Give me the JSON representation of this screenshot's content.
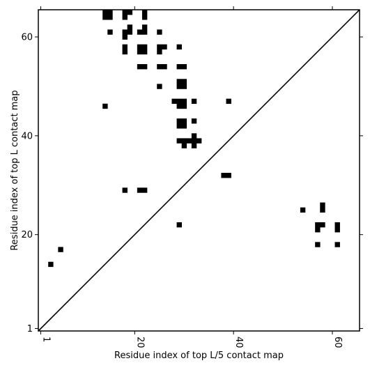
{
  "chart_data": {
    "type": "heatmap",
    "title": "",
    "xlabel": "Residue index of top L/5 contact map",
    "ylabel": "Residue index of top L contact map",
    "xlim": [
      0.5,
      65.5
    ],
    "ylim": [
      0.5,
      65.5
    ],
    "xticks": [
      1,
      20,
      40,
      60
    ],
    "yticks": [
      1,
      20,
      40,
      60
    ],
    "diagonal_line": true,
    "upper_left_contacts": [
      [
        14,
        65
      ],
      [
        15,
        65
      ],
      [
        14,
        64
      ],
      [
        15,
        64
      ],
      [
        18,
        65
      ],
      [
        19,
        65
      ],
      [
        18,
        64
      ],
      [
        22,
        65
      ],
      [
        22,
        64
      ],
      [
        19,
        62
      ],
      [
        22,
        62
      ],
      [
        15,
        61
      ],
      [
        18,
        61
      ],
      [
        19,
        61
      ],
      [
        21,
        61
      ],
      [
        22,
        61
      ],
      [
        25,
        61
      ],
      [
        18,
        60
      ],
      [
        18,
        58
      ],
      [
        21,
        58
      ],
      [
        22,
        58
      ],
      [
        25,
        58
      ],
      [
        26,
        58
      ],
      [
        29,
        58
      ],
      [
        18,
        57
      ],
      [
        21,
        57
      ],
      [
        22,
        57
      ],
      [
        25,
        57
      ],
      [
        21,
        54
      ],
      [
        22,
        54
      ],
      [
        25,
        54
      ],
      [
        26,
        54
      ],
      [
        29,
        54
      ],
      [
        30,
        54
      ],
      [
        29,
        51
      ],
      [
        30,
        51
      ],
      [
        25,
        50
      ],
      [
        29,
        50
      ],
      [
        30,
        50
      ],
      [
        28,
        47
      ],
      [
        29,
        47
      ],
      [
        30,
        47
      ],
      [
        32,
        47
      ],
      [
        39,
        47
      ],
      [
        29,
        46
      ],
      [
        30,
        46
      ],
      [
        14,
        46
      ],
      [
        29,
        43
      ],
      [
        30,
        43
      ],
      [
        32,
        43
      ],
      [
        29,
        42
      ],
      [
        30,
        42
      ],
      [
        32,
        40
      ],
      [
        29,
        39
      ],
      [
        30,
        39
      ],
      [
        31,
        39
      ],
      [
        32,
        39
      ],
      [
        33,
        39
      ],
      [
        30,
        38
      ],
      [
        32,
        38
      ],
      [
        38,
        32
      ],
      [
        39,
        32
      ],
      [
        18,
        29
      ],
      [
        21,
        29
      ],
      [
        22,
        29
      ],
      [
        29,
        22
      ]
    ],
    "lower_right_contacts": [
      [
        3,
        14
      ],
      [
        5,
        17
      ],
      [
        54,
        25
      ],
      [
        58,
        25
      ],
      [
        58,
        26
      ],
      [
        57,
        22
      ],
      [
        58,
        22
      ],
      [
        61,
        22
      ],
      [
        57,
        21
      ],
      [
        61,
        21
      ],
      [
        57,
        18
      ],
      [
        61,
        18
      ]
    ]
  }
}
